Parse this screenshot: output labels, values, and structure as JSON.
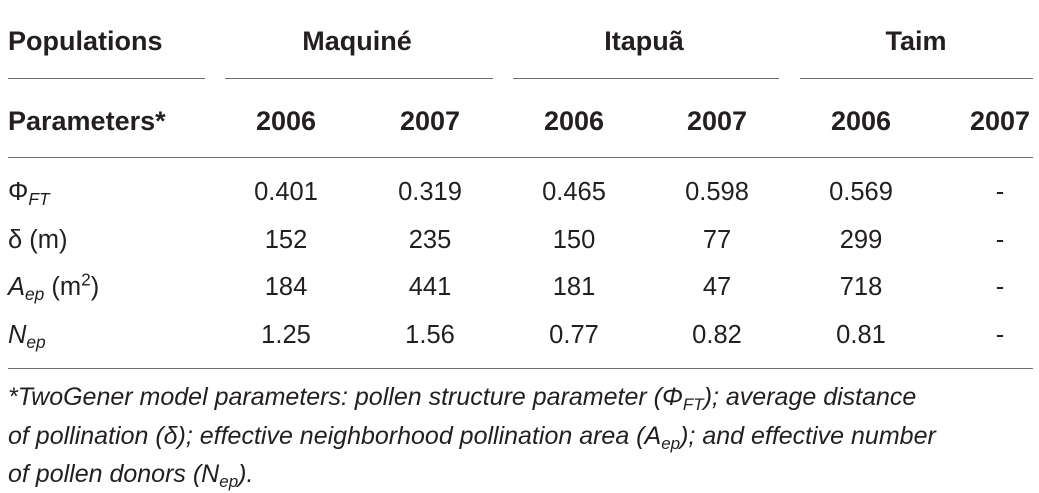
{
  "table": {
    "header_row1": {
      "label": "Populations",
      "groups": [
        "Maquiné",
        "Itapuã",
        "Taim"
      ]
    },
    "header_row2": {
      "label": "Parameters*",
      "years": [
        "2006",
        "2007",
        "2006",
        "2007",
        "2006",
        "2007"
      ]
    },
    "rows": [
      {
        "param": {
          "main": "Φ",
          "sub": "FT",
          "unit": ""
        },
        "values": [
          "0.401",
          "0.319",
          "0.465",
          "0.598",
          "0.569",
          "-"
        ]
      },
      {
        "param": {
          "main": "δ (m)"
        },
        "values": [
          "152",
          "235",
          "150",
          "77",
          "299",
          "-"
        ]
      },
      {
        "param": {
          "main": "A",
          "sub": "ep",
          "unit_prefix": " (m",
          "sup": "2",
          "unit_suffix": ")"
        },
        "values": [
          "184",
          "441",
          "181",
          "47",
          "718",
          "-"
        ]
      },
      {
        "param": {
          "main": "N",
          "sub": "ep"
        },
        "values": [
          "1.25",
          "1.56",
          "0.77",
          "0.82",
          "0.81",
          "-"
        ]
      }
    ]
  },
  "footnote": {
    "line1_a": "*TwoGener model parameters: pollen structure parameter (Φ",
    "line1_sub": "FT",
    "line1_b": "); average distance",
    "line2_a": "of pollination (δ); effective neighborhood pollination area (A",
    "line2_sub": "ep",
    "line2_b": "); and effective number",
    "line3_a": "of pollen donors (N",
    "line3_sub": "ep",
    "line3_b": ")."
  }
}
